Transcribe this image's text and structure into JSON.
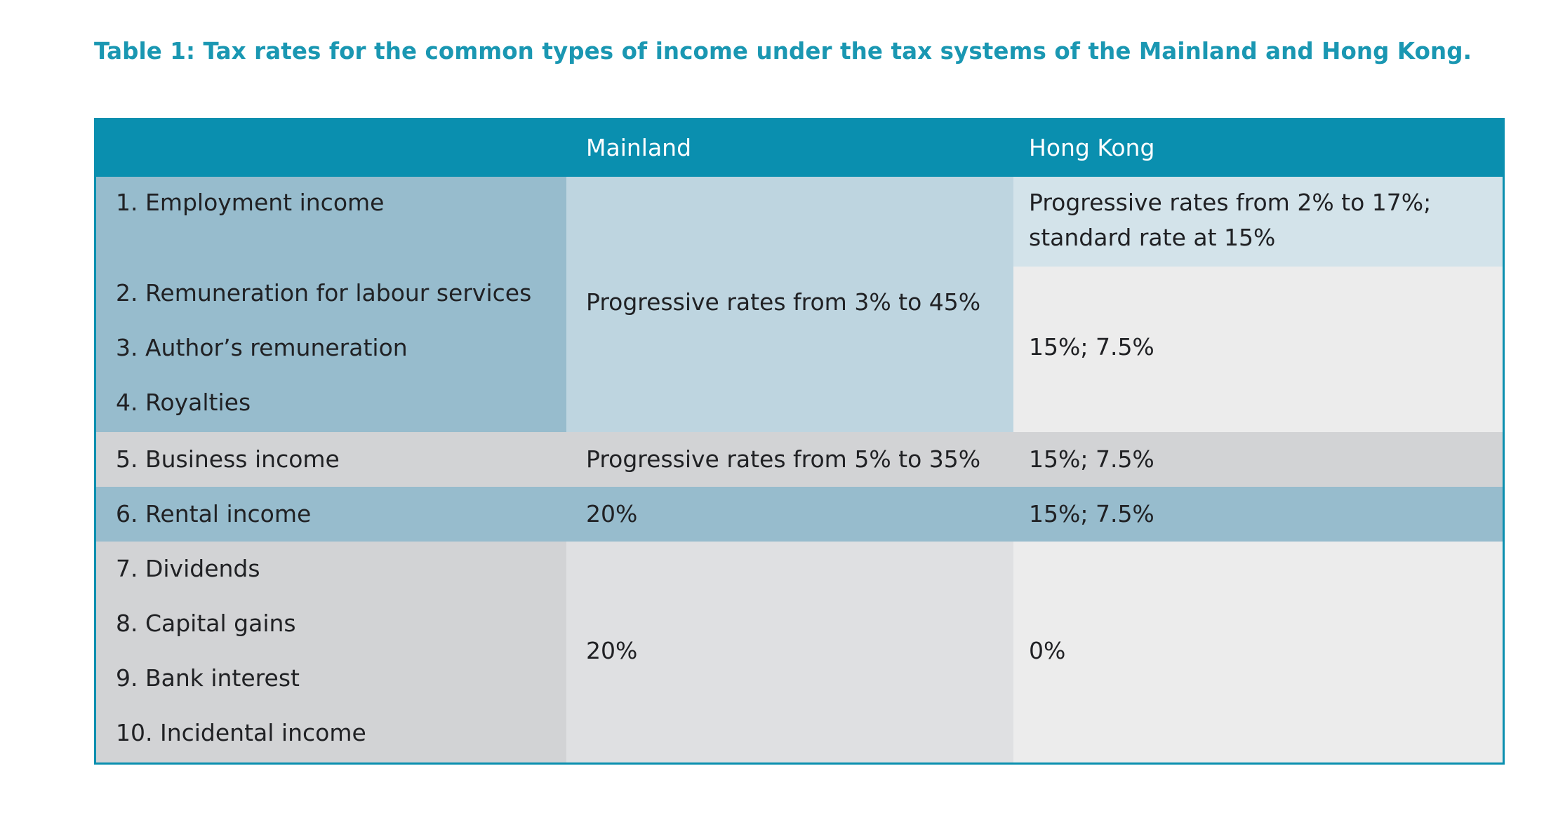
{
  "caption": "Table 1: Tax rates for the common types of income under the tax systems of the Mainland and Hong Kong.",
  "header": {
    "col1": "",
    "col2": "Mainland",
    "col3": "Hong Kong"
  },
  "rows": {
    "r1": "1. Employment income",
    "r2": "2. Remuneration for labour services",
    "r3": "3. Author’s remuneration",
    "r4": "4. Royalties",
    "r5": "5. Business income",
    "r6": "6. Rental income",
    "r7": "7. Dividends",
    "r8": "8. Capital gains",
    "r9": "9. Bank interest",
    "r10": "10. Incidental income"
  },
  "mainland": {
    "g1": "Progressive rates from 3% to 45%",
    "r5": "Progressive rates from 5% to 35%",
    "r6": "20%",
    "g3": "20%"
  },
  "hongkong": {
    "r1_line1": "Progressive rates from 2% to 17%;",
    "r1_line2": "standard rate at 15%",
    "g2": "15%; 7.5%",
    "r5": "15%; 7.5%",
    "r6": "15%; 7.5%",
    "g3": "0%"
  }
}
